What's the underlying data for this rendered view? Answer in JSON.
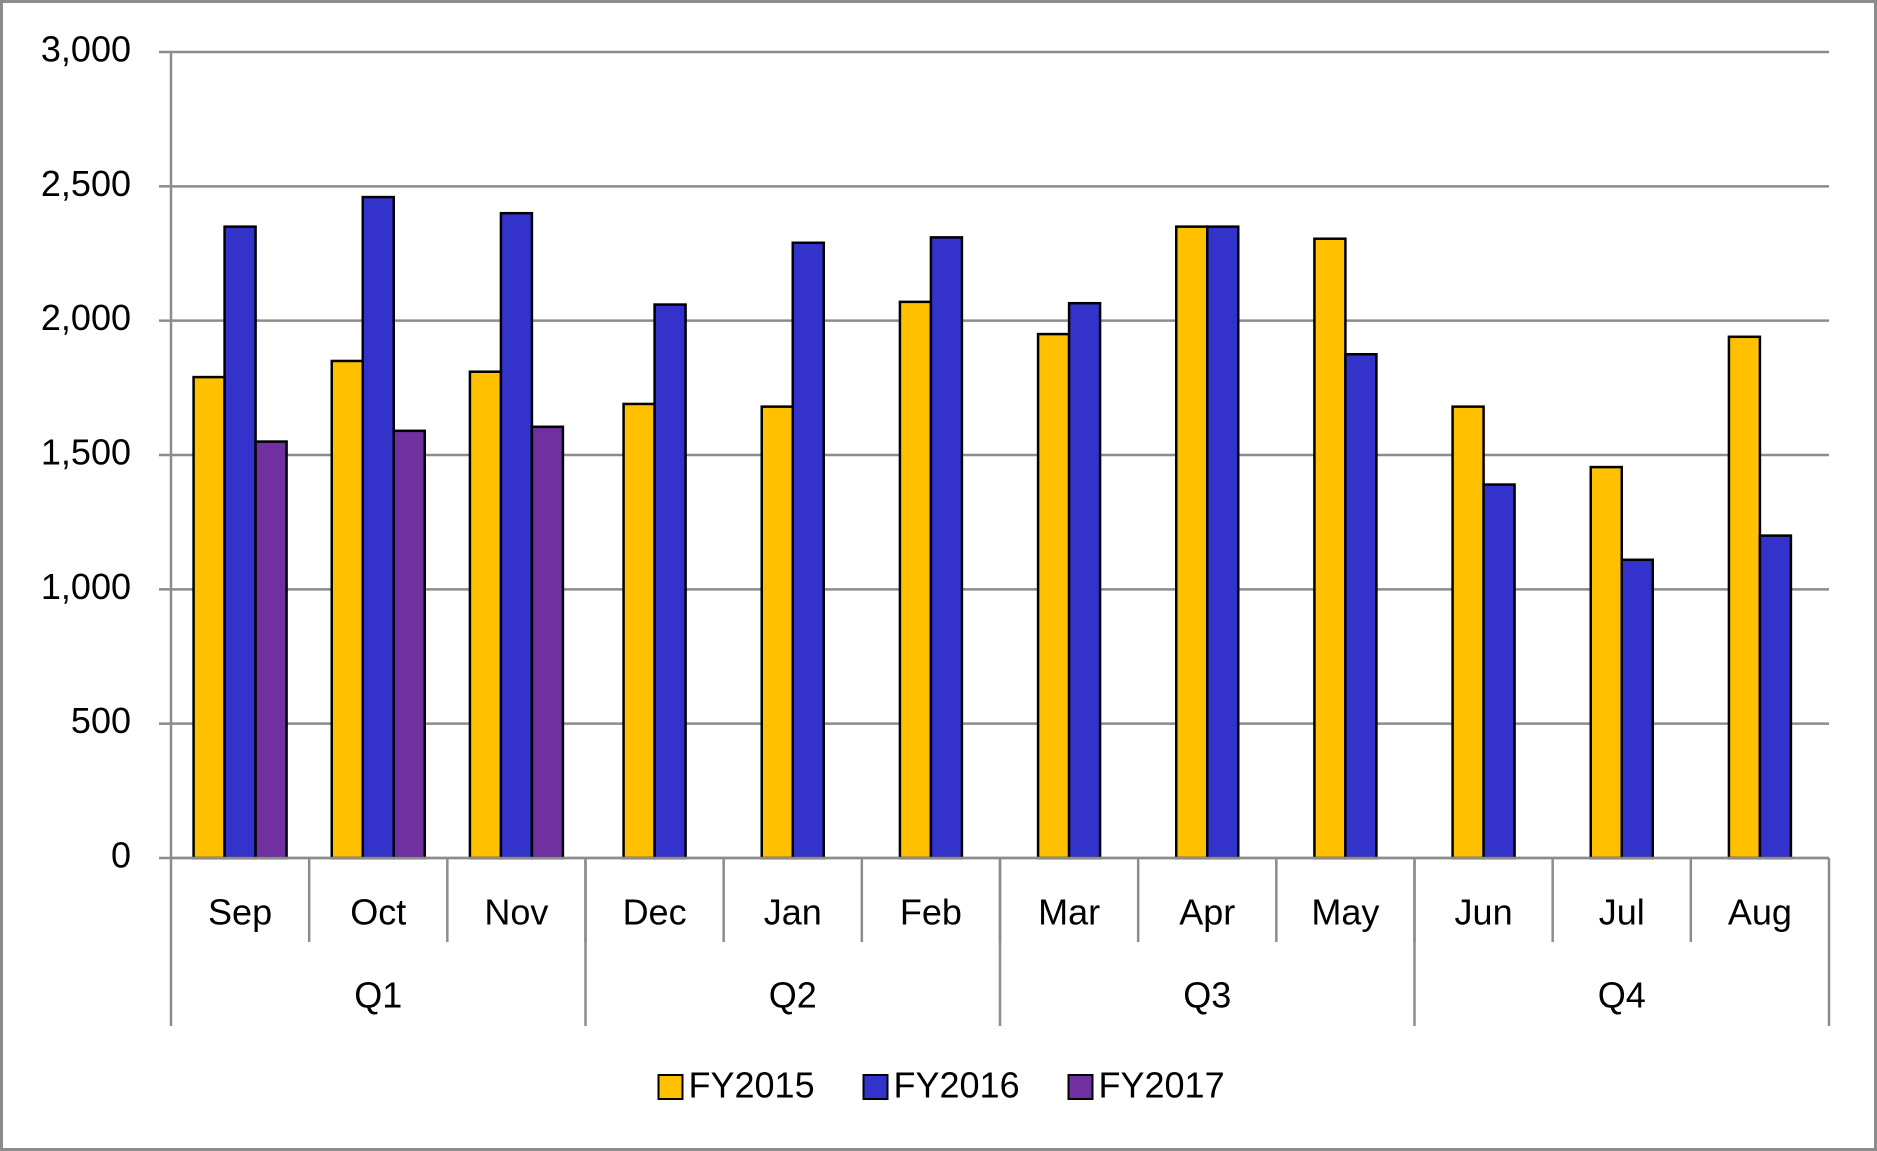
{
  "chart_data": {
    "type": "bar",
    "categories": [
      "Sep",
      "Oct",
      "Nov",
      "Dec",
      "Jan",
      "Feb",
      "Mar",
      "Apr",
      "May",
      "Jun",
      "Jul",
      "Aug"
    ],
    "groups": [
      {
        "label": "Q1",
        "count": 3
      },
      {
        "label": "Q2",
        "count": 3
      },
      {
        "label": "Q3",
        "count": 3
      },
      {
        "label": "Q4",
        "count": 3
      }
    ],
    "series": [
      {
        "name": "FY2015",
        "color": "#ffc000",
        "values": [
          1790,
          1850,
          1810,
          1690,
          1680,
          2070,
          1950,
          2350,
          2305,
          1680,
          1455,
          1940
        ]
      },
      {
        "name": "FY2016",
        "color": "#3333cc",
        "values": [
          2350,
          2460,
          2400,
          2060,
          2290,
          2310,
          2065,
          2350,
          1875,
          1390,
          1110,
          1200
        ]
      },
      {
        "name": "FY2017",
        "color": "#7030a0",
        "values": [
          1550,
          1590,
          1605,
          null,
          null,
          null,
          null,
          null,
          null,
          null,
          null,
          null
        ]
      }
    ],
    "ylim": [
      0,
      3000
    ],
    "yticks": [
      0,
      500,
      {
        "value": 1000,
        "label": "1,000"
      },
      {
        "value": 1500,
        "label": "1,500"
      },
      {
        "value": 2000,
        "label": "2,000"
      },
      {
        "value": 2500,
        "label": "2,500"
      },
      {
        "value": 3000,
        "label": "3,000"
      }
    ],
    "grid": true,
    "legend": "bottom"
  }
}
